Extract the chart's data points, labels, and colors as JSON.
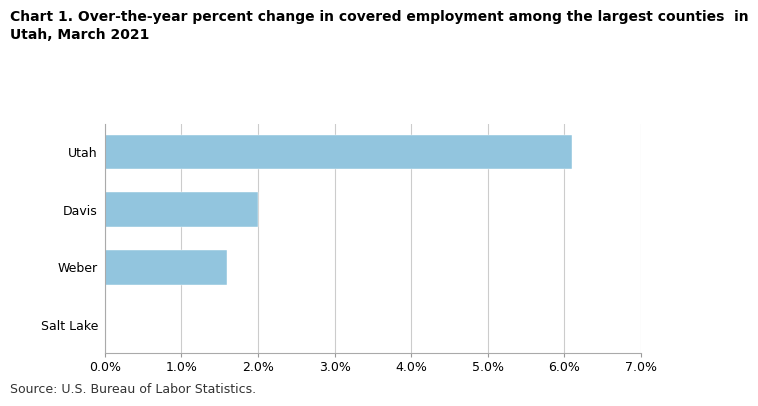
{
  "title_line1": "Chart 1. Over-the-year percent change in covered employment among the largest counties  in",
  "title_line2": "Utah, March 2021",
  "categories": [
    "Utah",
    "Davis",
    "Weber",
    "Salt Lake"
  ],
  "values": [
    6.1,
    2.0,
    1.6,
    0.0
  ],
  "bar_color": "#92c5de",
  "xlim": [
    0,
    0.07
  ],
  "xticks": [
    0.0,
    0.01,
    0.02,
    0.03,
    0.04,
    0.05,
    0.06,
    0.07
  ],
  "xticklabels": [
    "0.0%",
    "1.0%",
    "2.0%",
    "3.0%",
    "4.0%",
    "5.0%",
    "6.0%",
    "7.0%"
  ],
  "source": "Source: U.S. Bureau of Labor Statistics.",
  "background_color": "#ffffff",
  "grid_color": "#cccccc",
  "bar_edgecolor": "#ffffff",
  "title_fontsize": 10,
  "tick_fontsize": 9,
  "source_fontsize": 9
}
